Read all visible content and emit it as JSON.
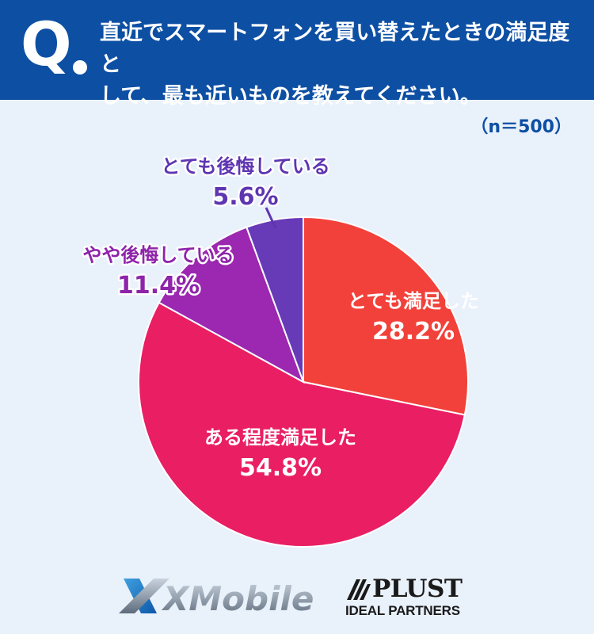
{
  "header": {
    "q_mark": "Q",
    "question_line1": "直近でスマートフォンを買い替えたときの満足度と",
    "question_line2": "して、最も近いものを教えてください。"
  },
  "sample_size": "（n＝500）",
  "chart_data": {
    "type": "pie",
    "start_angle_deg": 0,
    "direction": "clockwise",
    "slices": [
      {
        "name": "とても満足した",
        "value": 28.2,
        "label": "28.2%",
        "color": "#f2413a",
        "label_color": "#ffffff"
      },
      {
        "name": "ある程度満足した",
        "value": 54.8,
        "label": "54.8%",
        "color": "#e91e63",
        "label_color": "#ffffff"
      },
      {
        "name": "やや後悔している",
        "value": 11.4,
        "label": "11.4%",
        "color": "#9c27b0",
        "label_color": "#8e24aa"
      },
      {
        "name": "とても後悔している",
        "value": 5.6,
        "label": "5.6%",
        "color": "#673ab7",
        "label_color": "#5e35b1"
      }
    ]
  },
  "logos": {
    "xmobile": "XMobile",
    "plust": "PLUST",
    "plust_sub": "IDEAL PARTNERS"
  }
}
